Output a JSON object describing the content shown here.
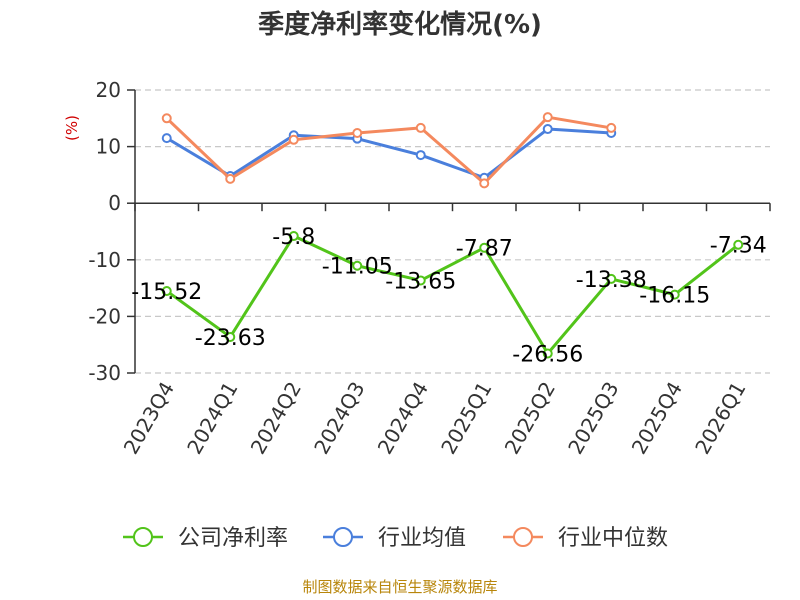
{
  "chart_data": {
    "type": "line",
    "title": "季度净利率变化情况(%)",
    "ylabel": "(%)",
    "xlabel": "",
    "categories": [
      "2023Q4",
      "2024Q1",
      "2024Q2",
      "2024Q3",
      "2024Q4",
      "2025Q1",
      "2025Q2",
      "2025Q3",
      "2025Q4",
      "2026Q1"
    ],
    "ylim": [
      -30,
      20
    ],
    "yticks": [
      20,
      10,
      0,
      -10,
      -20,
      -30
    ],
    "grid": true,
    "legend_position": "bottom",
    "series": [
      {
        "name": "公司净利率",
        "color": "#52c41a",
        "values": [
          -15.52,
          -23.63,
          -5.8,
          -11.05,
          -13.65,
          -7.87,
          -26.56,
          -13.38,
          -16.15,
          -7.34
        ],
        "labels": [
          "-15.52",
          "-23.63",
          "-5.8",
          "-11.05",
          "-13.65",
          "-7.87",
          "-26.56",
          "-13.38",
          "-16.15",
          "-7.34"
        ]
      },
      {
        "name": "行业均值",
        "color": "#4a7fdc",
        "values": [
          11.5,
          4.8,
          12.0,
          11.4,
          8.5,
          4.5,
          13.1,
          12.4,
          null,
          null
        ]
      },
      {
        "name": "行业中位数",
        "color": "#f4895e",
        "values": [
          15.0,
          4.3,
          11.2,
          12.4,
          13.3,
          3.5,
          15.2,
          13.3,
          null,
          null
        ]
      }
    ]
  },
  "source": "制图数据来自恒生聚源数据库"
}
